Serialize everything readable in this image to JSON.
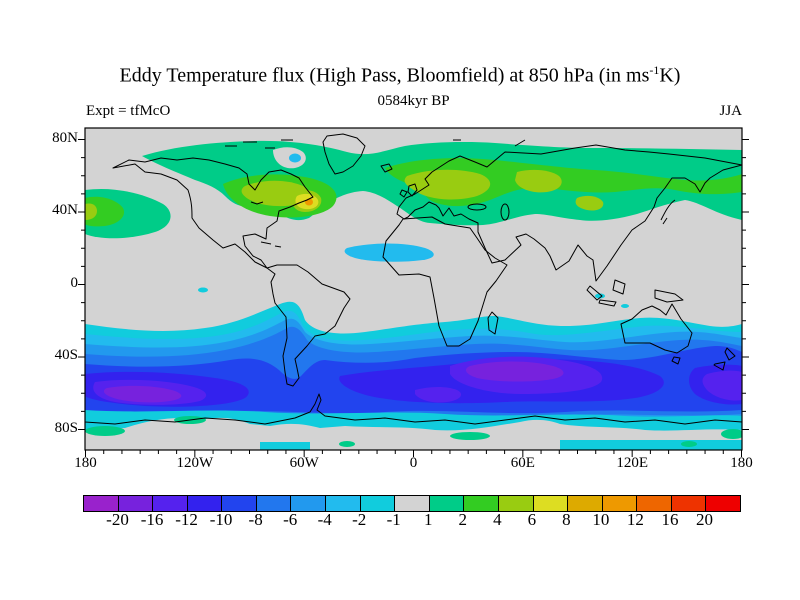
{
  "header": {
    "title_prefix": "Eddy Temperature flux (High Pass, Bloomfield) at 850 hPa (in ms",
    "title_sup": "-1",
    "title_suffix": "K)",
    "subtitle": "0584kyr BP",
    "experiment_label": "Expt = tfMcO",
    "season_label": "JJA"
  },
  "axes": {
    "lat_labels": [
      {
        "text": "80N",
        "deg": 80
      },
      {
        "text": "40N",
        "deg": 40
      },
      {
        "text": "0",
        "deg": 0
      },
      {
        "text": "40S",
        "deg": -40
      },
      {
        "text": "80S",
        "deg": -80
      }
    ],
    "lon_labels": [
      {
        "text": "180",
        "deg": -180
      },
      {
        "text": "120W",
        "deg": -120
      },
      {
        "text": "60W",
        "deg": -60
      },
      {
        "text": "0",
        "deg": 0
      },
      {
        "text": "60E",
        "deg": 60
      },
      {
        "text": "120E",
        "deg": 120
      },
      {
        "text": "180",
        "deg": 180
      }
    ],
    "lat_minor_step": 10,
    "lon_minor_step": 10
  },
  "colorbar": {
    "boundary_labels": [
      "-20",
      "-16",
      "-12",
      "-10",
      "-8",
      "-6",
      "-4",
      "-2",
      "-1",
      "1",
      "2",
      "4",
      "6",
      "8",
      "10",
      "12",
      "16",
      "20"
    ],
    "segment_colors": [
      "#9922cc",
      "#7722dd",
      "#5522ee",
      "#3322ee",
      "#2244ee",
      "#2277ee",
      "#2299ee",
      "#22bbee",
      "#11ccdd",
      "#d3d3d3",
      "#00cc88",
      "#33cc22",
      "#99cc11",
      "#dddd22",
      "#ddaa00",
      "#ee9900",
      "#ee6600",
      "#ee3300",
      "#ee0000"
    ]
  },
  "chart_data": {
    "type": "filled_contour_map",
    "title": "Eddy Temperature flux (High Pass, Bloomfield) at 850 hPa (in ms-1 K)",
    "subtitle": "0584kyr BP",
    "experiment": "tfMcO",
    "season": "JJA",
    "pressure_level": "850 hPa",
    "units": "ms-1 K",
    "projection": "equirectangular (cylindrical lat-lon, coastlines overlaid)",
    "lon_range": [
      -180,
      180
    ],
    "lat_range": [
      -90,
      90
    ],
    "lon_tick_labels_deg": [
      -180,
      -120,
      -60,
      0,
      60,
      120,
      180
    ],
    "lat_tick_labels_deg": [
      80,
      40,
      0,
      -40,
      -80
    ],
    "contour_levels": [
      -20,
      -16,
      -12,
      -10,
      -8,
      -6,
      -4,
      -2,
      -1,
      1,
      2,
      4,
      6,
      8,
      10,
      12,
      16,
      20
    ],
    "palette": [
      "#9922cc",
      "#7722dd",
      "#5522ee",
      "#3322ee",
      "#2244ee",
      "#2277ee",
      "#2299ee",
      "#22bbee",
      "#11ccdd",
      "#d3d3d3",
      "#00cc88",
      "#33cc22",
      "#99cc11",
      "#dddd22",
      "#ddaa00",
      "#ee9900",
      "#ee6600",
      "#ee3300",
      "#ee0000"
    ],
    "near_zero_color": "#d3d3d3",
    "legend_position": "bottom horizontal colorbar",
    "features": [
      {
        "region": "Northern mid/high latitudes, ~35N-75N all longitudes",
        "description": "Continuous band of positive flux",
        "values": "1 to 4 broadly; 4-6 cores over central Canada, Newfoundland, eastern Europe and central Siberia; small 6-8 patch with ~8-12 maximum near 60W 46N (east of Nova Scotia); band interrupted by near-zero values over the Gulf of Alaska"
      },
      {
        "region": "Tropics and subtropics, ~25S-35N",
        "description": "Near-zero flux",
        "values": "-1 to 1 (gray); -2 to -4 patch over West Africa / eastern tropical Atlantic near 20N; small -2 spot over Baffin Bay near 70N 60W; scattered -2 specks near the equatorial Pacific and Indonesia"
      },
      {
        "region": "Southern mid-latitudes, ~30S-70S all longitudes",
        "description": "Strong negative flux band (austral winter storm track)",
        "values": "-4 to -12 broadly; cores below -16 to -20 in the South Pacific near 60S 170W-120W, in the South Indian Ocean near 45-55S 40-80E, and east of New Zealand near 55S 180; lighter (-2 to -6) wedge over Argentina east of the Andes"
      },
      {
        "region": "Antarctica, poleward of ~70S",
        "description": "Weak flux over the continent",
        "values": "-1 to 1 with small 1-2 green patches along the coast near 175W, 15E-35E and 170E, and -1 to -2 strips near 80S"
      }
    ]
  }
}
